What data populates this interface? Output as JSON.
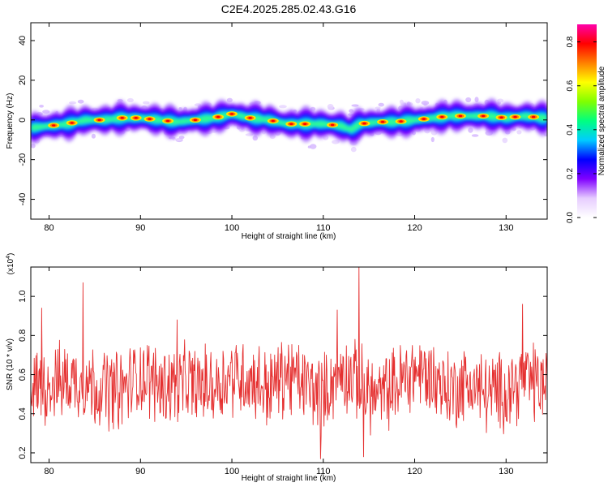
{
  "title": "C2E4.2025.285.02.43.G16",
  "chart_data": [
    {
      "type": "heatmap",
      "xlabel": "Height of straight line (km)",
      "ylabel": "Frequency (Hz)",
      "xlim": [
        78,
        134.5
      ],
      "ylim": [
        -50,
        49
      ],
      "xticks": [
        80,
        90,
        100,
        110,
        120,
        130
      ],
      "yticks": [
        -40,
        -20,
        0,
        20,
        40
      ],
      "colorbar": {
        "label": "Normalized spectral amplitude",
        "range": [
          0,
          0.88
        ],
        "ticks": [
          0.0,
          0.2,
          0.4,
          0.6,
          0.8
        ],
        "colormap": [
          "#ffffff",
          "#e6ccff",
          "#8000ff",
          "#0000ff",
          "#00ccff",
          "#00ff80",
          "#80ff00",
          "#ffff00",
          "#ff8000",
          "#ff0000",
          "#ff00aa"
        ]
      },
      "ridge": {
        "km": [
          78,
          80,
          82,
          84,
          86,
          88,
          90,
          92,
          94,
          96,
          98,
          100,
          102,
          104,
          106,
          108,
          110,
          112,
          113,
          114,
          116,
          118,
          120,
          122,
          124,
          126,
          128,
          130,
          132,
          134
        ],
        "freq": [
          -4,
          -3,
          -2,
          0,
          0,
          1,
          1,
          0,
          -1,
          0,
          1,
          3,
          1,
          0,
          -2,
          -2,
          -2,
          -3,
          -5,
          -2,
          -1,
          -1,
          0,
          1,
          2,
          2,
          2,
          1,
          2,
          1
        ]
      },
      "peak_km": [
        80.5,
        82.5,
        85.5,
        88,
        89.5,
        91,
        93,
        96,
        98.5,
        100,
        102,
        104.5,
        106.5,
        108,
        111,
        114.5,
        116.5,
        118.5,
        121,
        123,
        125,
        127.5,
        129.5,
        131,
        133
      ]
    },
    {
      "type": "line",
      "xlabel": "Height of straight line (km)",
      "ylabel": "SNR (10 * v/v)",
      "yscale_label": "(x10",
      "yscale_exp": "4",
      "xlim": [
        78,
        134.5
      ],
      "ylim": [
        0.15,
        1.15
      ],
      "xticks": [
        80,
        90,
        100,
        110,
        120,
        130
      ],
      "yticks": [
        0.2,
        0.4,
        0.6,
        0.8,
        1.0
      ],
      "ytick_labels": [
        "0.2",
        "0.4",
        "0.6",
        "0.8",
        "1.0"
      ],
      "color": "#e53030",
      "series": [
        {
          "x": [
            78,
            80,
            82,
            84,
            86,
            88,
            90,
            92,
            94,
            96,
            98,
            100,
            102,
            104,
            106,
            108,
            110,
            112,
            114,
            116,
            118,
            120,
            122,
            124,
            126,
            128,
            130,
            132,
            134
          ],
          "values": [
            0.52,
            0.55,
            0.57,
            0.56,
            0.53,
            0.52,
            0.6,
            0.55,
            0.56,
            0.55,
            0.54,
            0.6,
            0.58,
            0.53,
            0.6,
            0.55,
            0.5,
            0.62,
            0.55,
            0.48,
            0.55,
            0.62,
            0.58,
            0.52,
            0.56,
            0.5,
            0.52,
            0.58,
            0.55
          ],
          "spikes": [
            [
              79.2,
              0.94
            ],
            [
              83.7,
              1.07
            ],
            [
              94,
              0.88
            ],
            [
              111.5,
              0.93
            ],
            [
              113.9,
              1.15
            ],
            [
              109.7,
              0.17
            ],
            [
              114.4,
              0.18
            ],
            [
              131.8,
              0.96
            ]
          ]
        }
      ]
    }
  ]
}
